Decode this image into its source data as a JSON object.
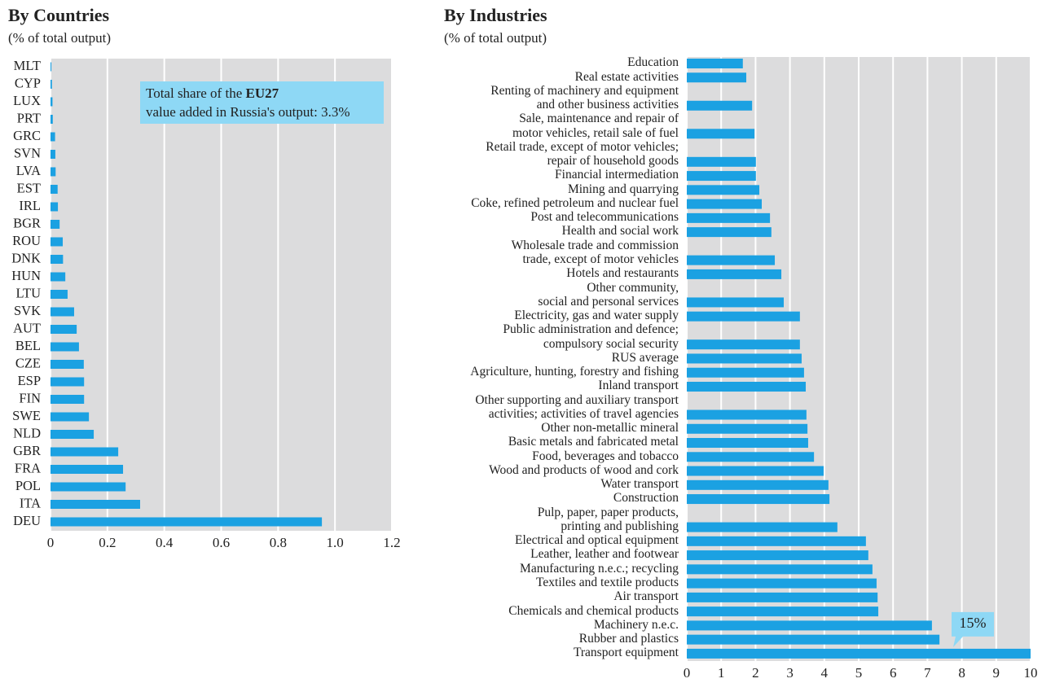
{
  "chart_data": [
    {
      "type": "barh",
      "title": "By Countries",
      "subtitle": "(% of total output)",
      "categories": [
        "MLT",
        "CYP",
        "LUX",
        "PRT",
        "GRC",
        "SVN",
        "LVA",
        "EST",
        "IRL",
        "BGR",
        "ROU",
        "DNK",
        "HUN",
        "LTU",
        "SVK",
        "AUT",
        "BEL",
        "CZE",
        "ESP",
        "FIN",
        "SWE",
        "NLD",
        "GBR",
        "FRA",
        "POL",
        "ITA",
        "DEU"
      ],
      "values": [
        0.003,
        0.005,
        0.007,
        0.008,
        0.016,
        0.017,
        0.018,
        0.025,
        0.026,
        0.032,
        0.043,
        0.044,
        0.052,
        0.06,
        0.083,
        0.092,
        0.1,
        0.117,
        0.118,
        0.118,
        0.135,
        0.152,
        0.238,
        0.255,
        0.264,
        0.315,
        0.954
      ],
      "color": "#1ba1e2",
      "xlim": [
        0,
        1.2
      ],
      "xticks": [
        0,
        0.2,
        0.4,
        0.6,
        0.8,
        {
          "value": 1,
          "label": "1.0"
        },
        1.2
      ],
      "grid": true,
      "annotation": {
        "text_before": "Total share of the ",
        "bold": "EU27",
        "text_after": "value added in Russia's output: 3.3%"
      }
    },
    {
      "type": "barh",
      "title": "By Industries",
      "subtitle": "(% of total output)",
      "categories": [
        "Education",
        "Real estate activities",
        "Renting of machinery and equipment\nand other business activities",
        "Sale, maintenance and repair of\nmotor vehicles, retail sale of fuel",
        "Retail trade, except of motor vehicles;\nrepair of household goods",
        "Financial intermediation",
        "Mining and quarrying",
        "Coke, refined petroleum and nuclear fuel",
        "Post and telecommunications",
        "Health and social work",
        "Wholesale trade and commission\ntrade, except of motor vehicles",
        "Hotels and restaurants",
        "Other community,\nsocial and personal services",
        "Electricity, gas and water supply",
        "Public administration and defence;\ncompulsory social security",
        "RUS average",
        "Agriculture, hunting, forestry and fishing",
        "Inland transport",
        "Other supporting and auxiliary transport\nactivities; activities of travel agencies",
        "Other non-metallic mineral",
        "Basic metals and fabricated metal",
        "Food, beverages and tobacco",
        "Wood and products of wood and cork",
        "Water transport",
        "Construction",
        "Pulp, paper, paper products,\nprinting and publishing",
        "Electrical and optical equipment",
        "Leather, leather and footwear",
        "Manufacturing n.e.c.; recycling",
        "Textiles and textile products",
        "Air transport",
        "Chemicals and chemical products",
        "Machinery n.e.c.",
        "Rubber and plastics",
        "Transport equipment"
      ],
      "values": [
        1.63,
        1.73,
        1.9,
        1.97,
        2.01,
        2.01,
        2.11,
        2.18,
        2.42,
        2.46,
        2.56,
        2.75,
        2.82,
        3.29,
        3.29,
        3.34,
        3.41,
        3.46,
        3.48,
        3.51,
        3.53,
        3.7,
        3.98,
        4.12,
        4.15,
        4.38,
        5.21,
        5.28,
        5.4,
        5.52,
        5.55,
        5.57,
        7.13,
        7.35,
        15
      ],
      "value_labels": [
        null,
        null,
        null,
        null,
        null,
        null,
        null,
        null,
        null,
        null,
        null,
        null,
        null,
        null,
        null,
        null,
        null,
        null,
        null,
        null,
        null,
        null,
        null,
        null,
        null,
        null,
        null,
        null,
        null,
        null,
        null,
        null,
        null,
        null,
        "15%"
      ],
      "color": "#1ba1e2",
      "xlim": [
        0,
        10
      ],
      "xticks": [
        0,
        1,
        2,
        3,
        4,
        5,
        6,
        7,
        8,
        9,
        10
      ],
      "grid": true
    }
  ]
}
